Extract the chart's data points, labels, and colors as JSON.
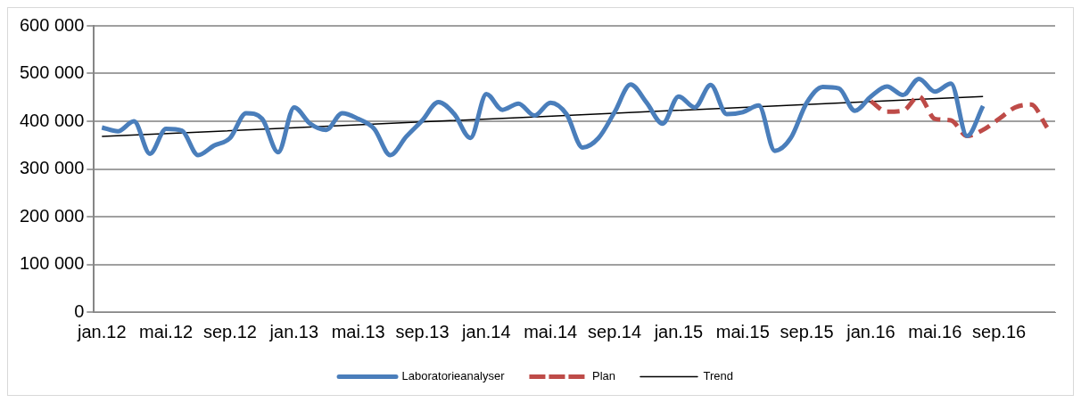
{
  "chart_data": {
    "type": "line",
    "categories": [
      "jan.12",
      null,
      null,
      null,
      "mai.12",
      null,
      null,
      null,
      "sep.12",
      null,
      null,
      null,
      "jan.13",
      null,
      null,
      null,
      "mai.13",
      null,
      null,
      null,
      "sep.13",
      null,
      null,
      null,
      "jan.14",
      null,
      null,
      null,
      "mai.14",
      null,
      null,
      null,
      "sep.14",
      null,
      null,
      null,
      "jan.15",
      null,
      null,
      null,
      "mai.15",
      null,
      null,
      null,
      "sep.15",
      null,
      null,
      null,
      "jan.16",
      null,
      null,
      null,
      "mai.16",
      null,
      null,
      null,
      "sep.16",
      null,
      null,
      null
    ],
    "series": [
      {
        "name": "Laboratorieanalyser",
        "color": "#4a7ebb",
        "line_style": "solid",
        "values": [
          387000,
          379000,
          400000,
          332000,
          384000,
          380000,
          329000,
          349000,
          365000,
          417000,
          405000,
          335000,
          429000,
          395000,
          382000,
          417000,
          405000,
          384000,
          329000,
          368000,
          402000,
          440000,
          415000,
          365000,
          457000,
          424000,
          437000,
          412000,
          439000,
          415000,
          345000,
          365000,
          419000,
          477000,
          439000,
          395000,
          452000,
          429000,
          476000,
          415000,
          419000,
          433000,
          338000,
          365000,
          439000,
          472000,
          469000,
          422000,
          452000,
          473000,
          455000,
          489000,
          462000,
          479000,
          369000,
          432000,
          null,
          null,
          null,
          null
        ]
      },
      {
        "name": "Plan",
        "color": "#be4b48",
        "line_style": "dashed",
        "values": [
          null,
          null,
          null,
          null,
          null,
          null,
          null,
          null,
          null,
          null,
          null,
          null,
          null,
          null,
          null,
          null,
          null,
          null,
          null,
          null,
          null,
          null,
          null,
          null,
          null,
          null,
          null,
          null,
          null,
          null,
          null,
          null,
          null,
          null,
          null,
          null,
          null,
          null,
          null,
          null,
          null,
          null,
          null,
          null,
          null,
          null,
          null,
          null,
          442000,
          420000,
          422000,
          452000,
          405000,
          402000,
          369000,
          382000,
          405000,
          429000,
          435000,
          387000
        ]
      },
      {
        "name": "Trend",
        "color": "#000000",
        "line_style": "solid",
        "type": "line",
        "values": [
          368000,
          null,
          null,
          null,
          null,
          null,
          null,
          null,
          null,
          null,
          null,
          null,
          null,
          null,
          null,
          null,
          null,
          null,
          null,
          null,
          null,
          null,
          null,
          null,
          null,
          null,
          null,
          null,
          null,
          null,
          null,
          null,
          null,
          null,
          null,
          null,
          null,
          null,
          null,
          null,
          null,
          null,
          null,
          null,
          null,
          null,
          null,
          null,
          null,
          null,
          null,
          null,
          null,
          null,
          null,
          452000,
          null,
          null,
          null,
          null
        ]
      }
    ],
    "ylim": [
      0,
      600000
    ],
    "yticks": [
      {
        "value": 0,
        "label": "0"
      },
      {
        "value": 100000,
        "label": "100 000"
      },
      {
        "value": 200000,
        "label": "200 000"
      },
      {
        "value": 300000,
        "label": "300 000"
      },
      {
        "value": 400000,
        "label": "400 000"
      },
      {
        "value": 500000,
        "label": "500 000"
      },
      {
        "value": 600000,
        "label": "600 000"
      }
    ],
    "grid": "y",
    "legend": "bottom",
    "marker": "none"
  }
}
